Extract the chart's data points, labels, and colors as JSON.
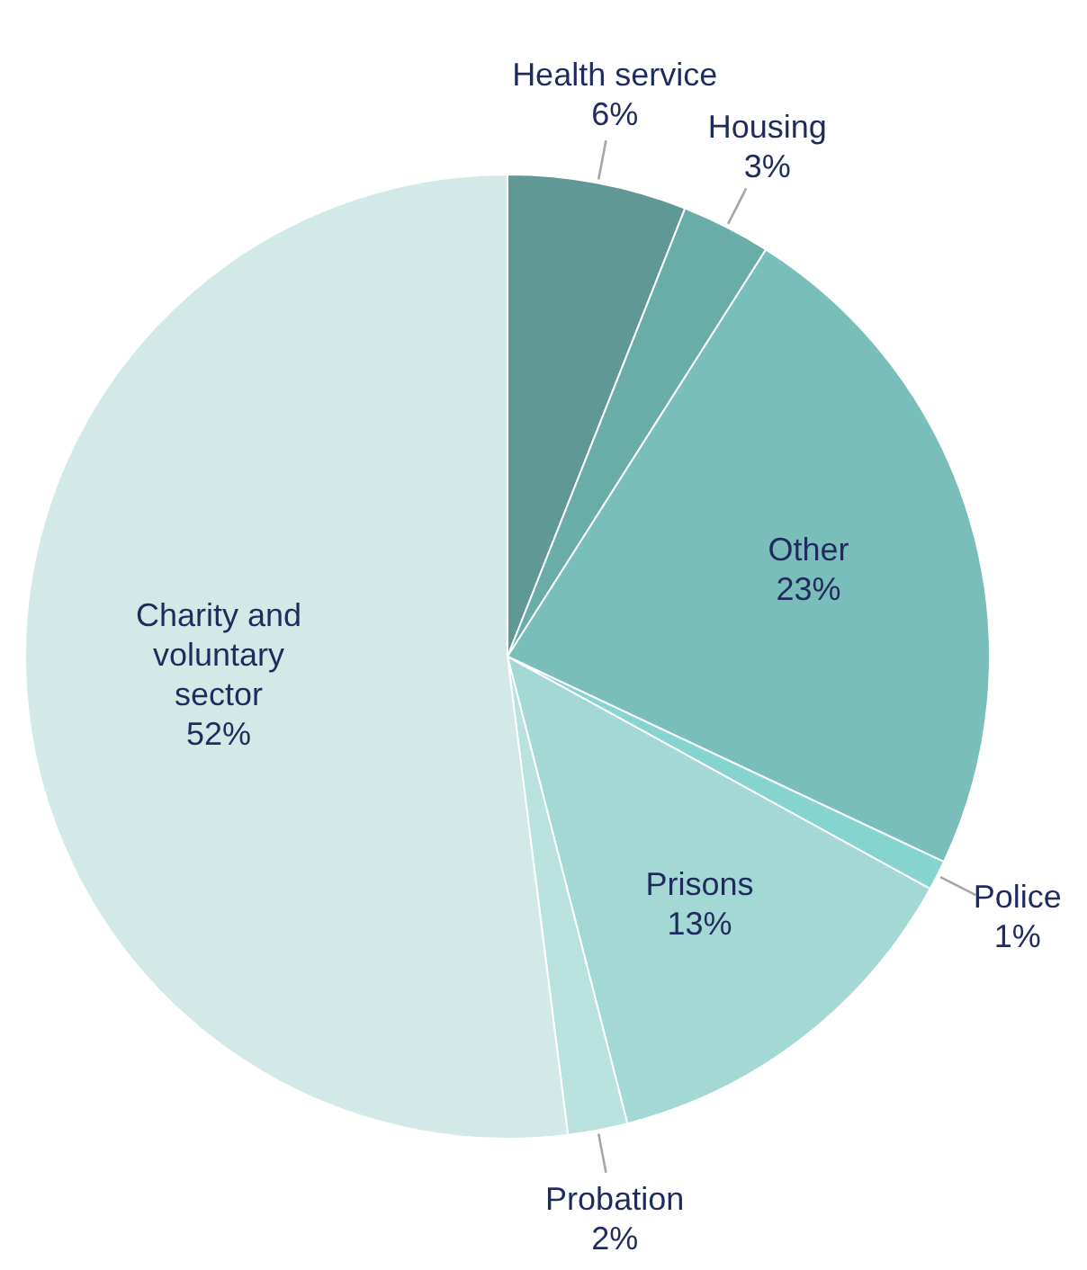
{
  "chart_data": {
    "type": "pie",
    "categories": [
      "Health service",
      "Housing",
      "Other",
      "Police",
      "Prisons",
      "Probation",
      "Charity and voluntary sector"
    ],
    "values": [
      6,
      3,
      23,
      1,
      13,
      2,
      52
    ],
    "value_labels": [
      "6%",
      "3%",
      "23%",
      "1%",
      "13%",
      "2%",
      "52%"
    ],
    "colors": [
      "#5f9894",
      "#6aaca7",
      "#7abebb",
      "#86d4cf",
      "#a3d8d4",
      "#b9e1de",
      "#d2e9e7"
    ]
  }
}
